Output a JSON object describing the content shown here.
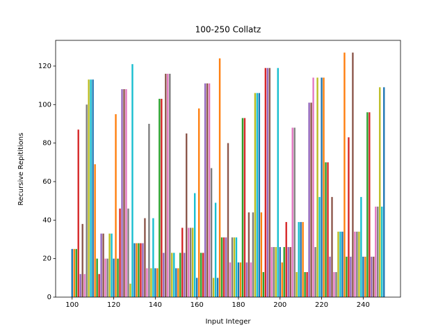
{
  "chart_data": {
    "type": "bar",
    "title": "100-250 Collatz",
    "x_label": "Input Integer",
    "y_label": "Recursive Repititions",
    "x": [
      100,
      101,
      102,
      103,
      104,
      105,
      106,
      107,
      108,
      109,
      110,
      111,
      112,
      113,
      114,
      115,
      116,
      117,
      118,
      119,
      120,
      121,
      122,
      123,
      124,
      125,
      126,
      127,
      128,
      129,
      130,
      131,
      132,
      133,
      134,
      135,
      136,
      137,
      138,
      139,
      140,
      141,
      142,
      143,
      144,
      145,
      146,
      147,
      148,
      149,
      150,
      151,
      152,
      153,
      154,
      155,
      156,
      157,
      158,
      159,
      160,
      161,
      162,
      163,
      164,
      165,
      166,
      167,
      168,
      169,
      170,
      171,
      172,
      173,
      174,
      175,
      176,
      177,
      178,
      179,
      180,
      181,
      182,
      183,
      184,
      185,
      186,
      187,
      188,
      189,
      190,
      191,
      192,
      193,
      194,
      195,
      196,
      197,
      198,
      199,
      200,
      201,
      202,
      203,
      204,
      205,
      206,
      207,
      208,
      209,
      210,
      211,
      212,
      213,
      214,
      215,
      216,
      217,
      218,
      219,
      220,
      221,
      222,
      223,
      224,
      225,
      226,
      227,
      228,
      229,
      230,
      231,
      232,
      233,
      234,
      235,
      236,
      237,
      238,
      239,
      240,
      241,
      242,
      243,
      244,
      245,
      246,
      247,
      248,
      249,
      250
    ],
    "values": [
      25,
      25,
      25,
      87,
      12,
      38,
      12,
      100,
      113,
      113,
      113,
      69,
      20,
      12,
      33,
      33,
      20,
      20,
      33,
      33,
      20,
      95,
      20,
      46,
      108,
      108,
      108,
      46,
      7,
      121,
      28,
      28,
      28,
      28,
      28,
      41,
      15,
      90,
      15,
      41,
      15,
      15,
      103,
      103,
      23,
      116,
      116,
      116,
      23,
      23,
      15,
      15,
      23,
      36,
      23,
      85,
      36,
      36,
      36,
      54,
      10,
      98,
      23,
      23,
      111,
      111,
      111,
      67,
      10,
      49,
      10,
      124,
      31,
      31,
      31,
      80,
      18,
      31,
      31,
      31,
      18,
      18,
      93,
      93,
      18,
      44,
      18,
      44,
      106,
      106,
      106,
      44,
      13,
      119,
      119,
      119,
      26,
      26,
      26,
      119,
      26,
      18,
      26,
      39,
      26,
      26,
      88,
      88,
      13,
      39,
      39,
      39,
      13,
      13,
      101,
      101,
      114,
      26,
      114,
      52,
      114,
      114,
      70,
      70,
      21,
      52,
      13,
      13,
      34,
      34,
      34,
      127,
      21,
      83,
      21,
      127,
      34,
      34,
      34,
      52,
      21,
      21,
      96,
      96,
      21,
      21,
      47,
      47,
      109,
      47,
      109
    ],
    "colors": [
      "#1f77b4",
      "#ff7f0e",
      "#2ca02c",
      "#d62728",
      "#9467bd",
      "#8c564b",
      "#e377c2",
      "#7f7f7f",
      "#bcbd22",
      "#17becf"
    ],
    "xlim": [
      92.06,
      257.94
    ],
    "ylim": [
      0,
      133.35
    ],
    "xticks": [
      100,
      120,
      140,
      160,
      180,
      200,
      220,
      240
    ],
    "yticks": [
      0,
      20,
      40,
      60,
      80,
      100,
      120
    ]
  }
}
